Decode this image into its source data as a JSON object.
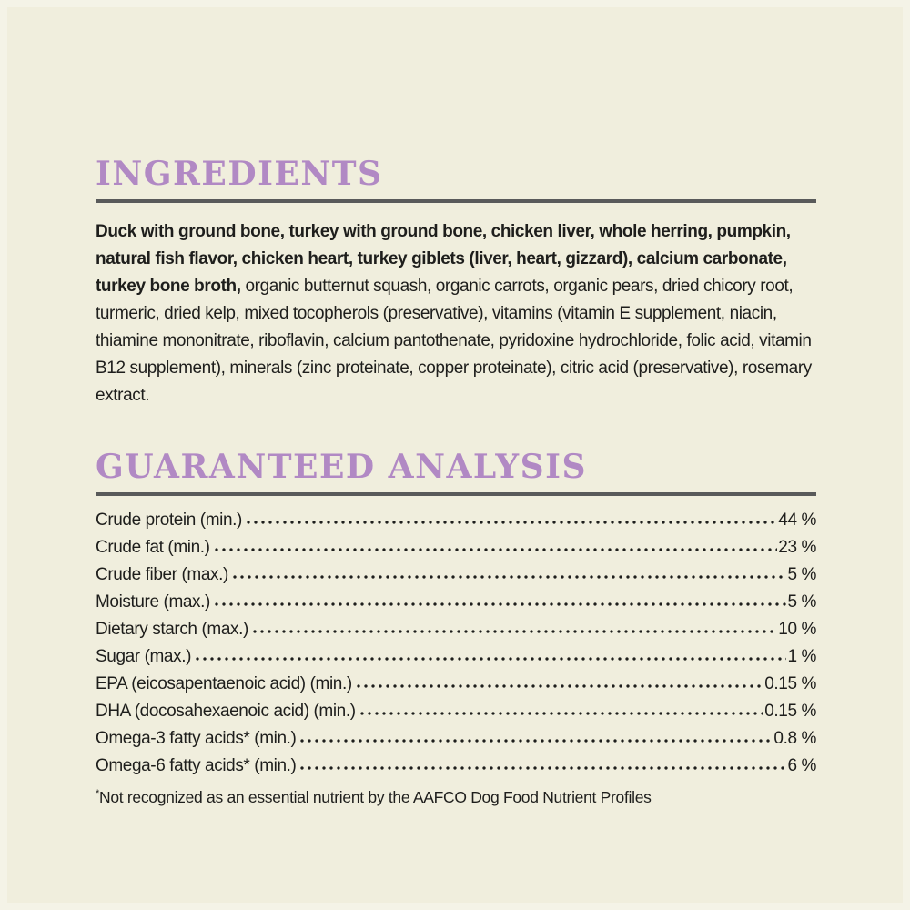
{
  "page": {
    "background_color": "#f0eedd",
    "accent_color": "#b189c4",
    "rule_color": "#595a5a",
    "text_color": "#1e1e1c"
  },
  "ingredients": {
    "heading": "INGREDIENTS",
    "bold_text": "Duck with ground bone, turkey with ground bone, chicken liver, whole herring, pumpkin, natural fish flavor, chicken heart, turkey giblets (liver, heart, gizzard), calcium carbonate, turkey bone broth,",
    "regular_text": " organic butternut squash, organic carrots, organic pears, dried chicory root, turmeric, dried kelp, mixed tocopherols (preservative), vitamins (vitamin E supplement, niacin, thiamine mononitrate, riboflavin, calcium pantothenate, pyridoxine hydrochloride, folic acid, vitamin B12 supplement), minerals (zinc proteinate, copper proteinate), citric acid (preservative), rosemary extract."
  },
  "guaranteed_analysis": {
    "heading": "GUARANTEED ANALYSIS",
    "rows": [
      {
        "label": "Crude protein (min.)",
        "value": "44 %"
      },
      {
        "label": "Crude fat (min.)",
        "value": "23 %"
      },
      {
        "label": "Crude fiber (max.)",
        "value": "5 %"
      },
      {
        "label": "Moisture (max.)",
        "value": "5 %"
      },
      {
        "label": "Dietary starch (max.)",
        "value": "10 %"
      },
      {
        "label": "Sugar (max.)",
        "value": "1 %"
      },
      {
        "label": "EPA (eicosapentaenoic acid) (min.)",
        "value": "0.15 %"
      },
      {
        "label": "DHA (docosahexaenoic acid) (min.)",
        "value": "0.15 %"
      },
      {
        "label": "Omega-3 fatty acids* (min.)",
        "value": "0.8 %"
      },
      {
        "label": "Omega-6 fatty acids* (min.)",
        "value": "6 %"
      }
    ],
    "footnote_marker": "*",
    "footnote_text": "Not recognized as an essential nutrient by the AAFCO Dog Food Nutrient Profiles"
  }
}
